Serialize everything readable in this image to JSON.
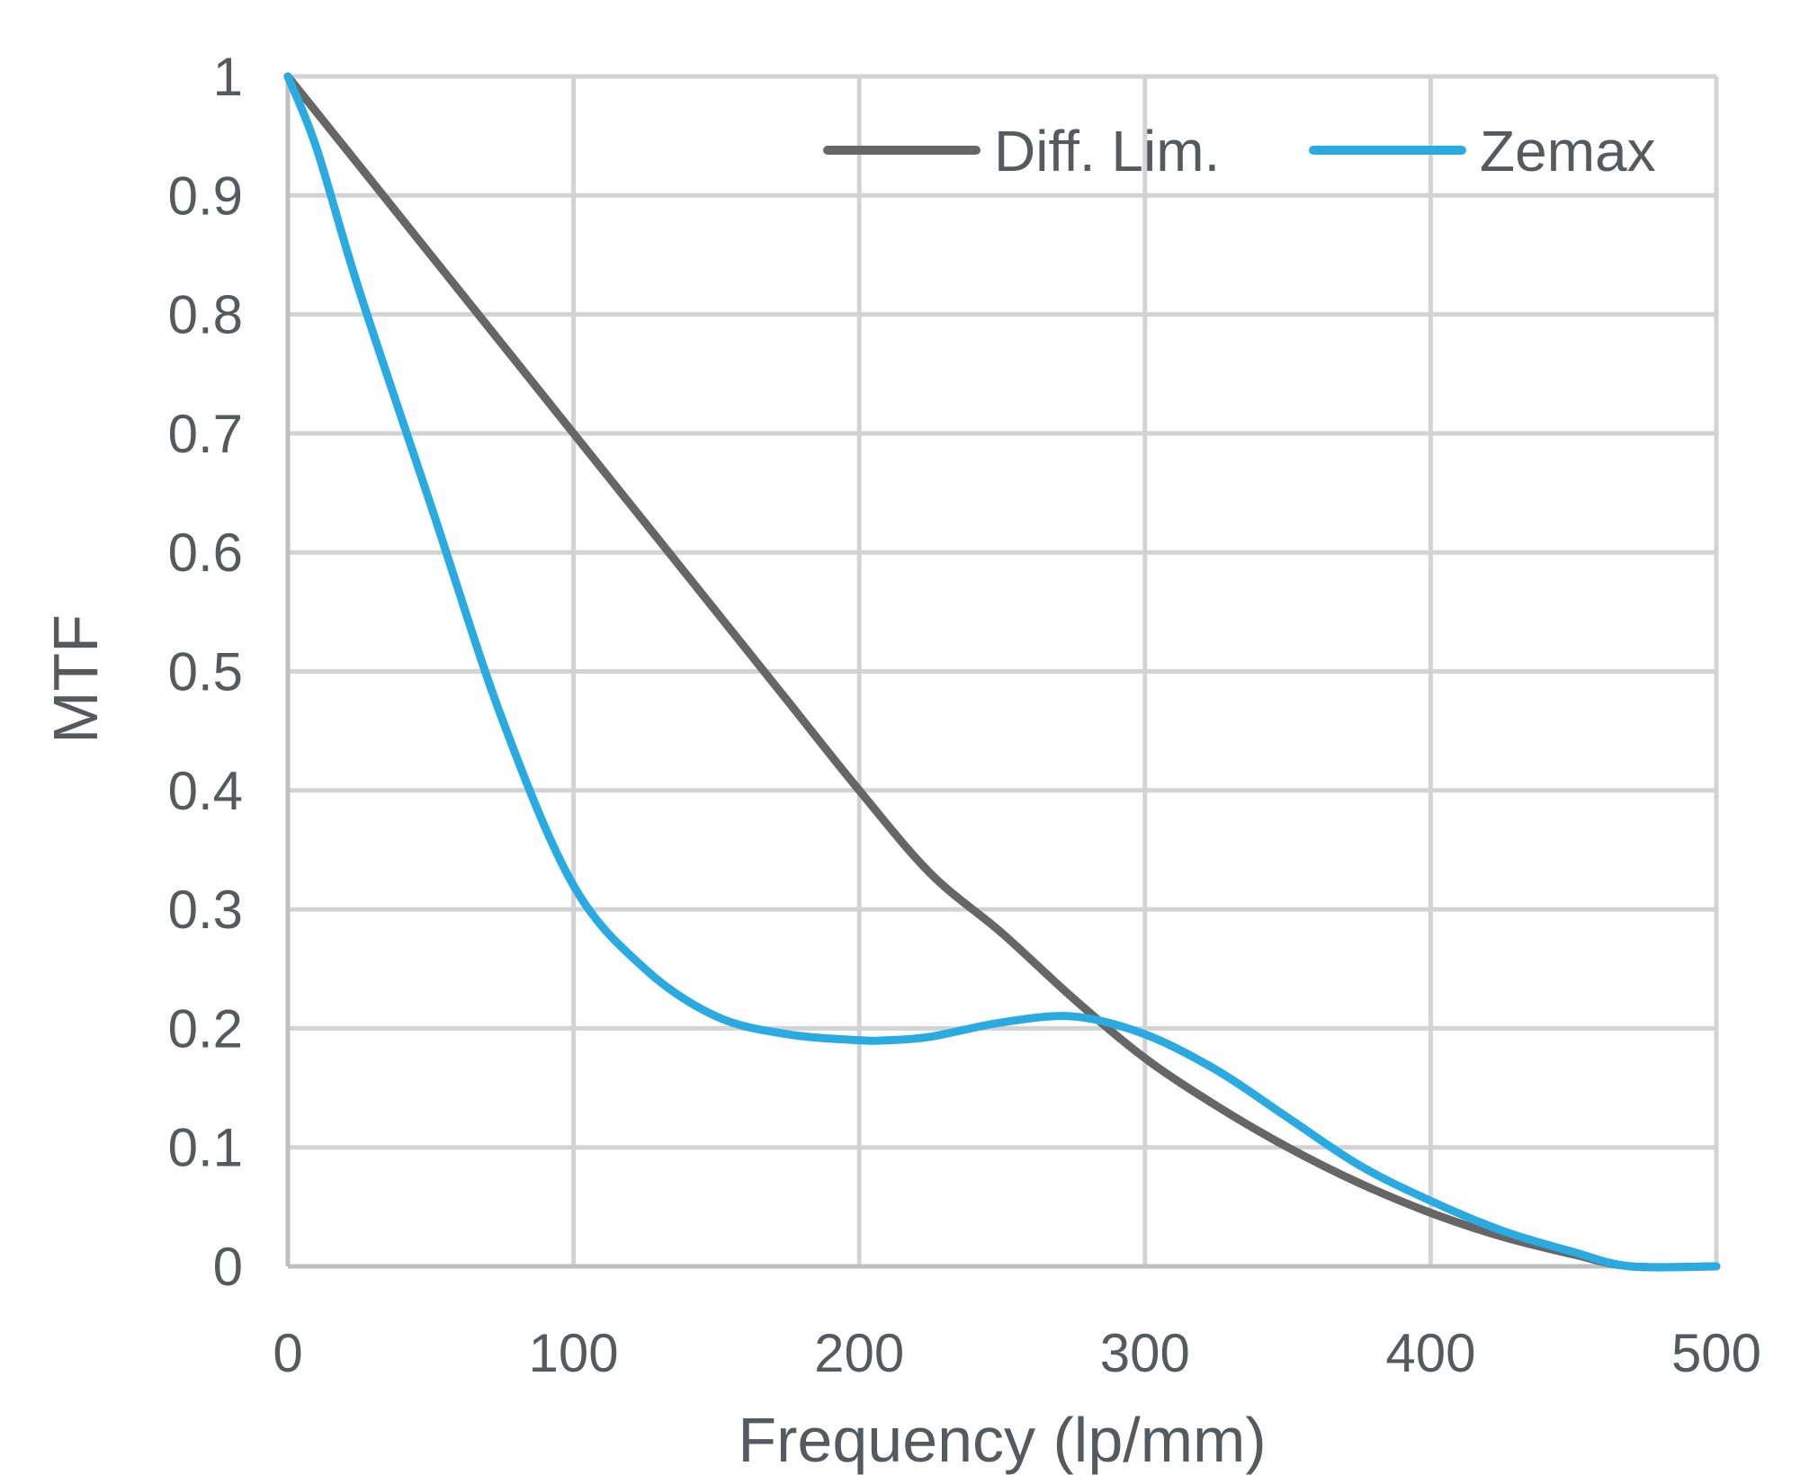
{
  "chart_data": {
    "type": "line",
    "title": "",
    "xlabel": "Frequency (lp/mm)",
    "ylabel": "MTF",
    "xlim": [
      0,
      500
    ],
    "ylim": [
      0,
      1
    ],
    "x_ticks": [
      "0",
      "100",
      "200",
      "300",
      "400",
      "500"
    ],
    "y_ticks": [
      "0",
      "0.1",
      "0.2",
      "0.3",
      "0.4",
      "0.5",
      "0.6",
      "0.7",
      "0.8",
      "0.9",
      "1"
    ],
    "grid": true,
    "legend_position": "top-right",
    "series": [
      {
        "name": "Diff. Lim.",
        "color": "#666666",
        "x": [
          0,
          25,
          50,
          75,
          100,
          125,
          150,
          175,
          200,
          225,
          250,
          275,
          300,
          325,
          350,
          375,
          400,
          425,
          450,
          470,
          500
        ],
        "y": [
          1.0,
          0.925,
          0.85,
          0.775,
          0.7,
          0.625,
          0.55,
          0.475,
          0.4,
          0.33,
          0.28,
          0.225,
          0.175,
          0.135,
          0.1,
          0.07,
          0.045,
          0.025,
          0.01,
          0.0,
          0.0
        ]
      },
      {
        "name": "Zemax",
        "color": "#29abe2",
        "x": [
          0,
          10,
          25,
          50,
          75,
          100,
          125,
          150,
          175,
          200,
          210,
          225,
          250,
          275,
          300,
          325,
          350,
          375,
          400,
          425,
          450,
          470,
          500
        ],
        "y": [
          1.0,
          0.94,
          0.82,
          0.64,
          0.46,
          0.32,
          0.25,
          0.21,
          0.195,
          0.19,
          0.19,
          0.193,
          0.205,
          0.21,
          0.195,
          0.165,
          0.125,
          0.085,
          0.055,
          0.03,
          0.012,
          0.0,
          0.0
        ]
      }
    ]
  }
}
